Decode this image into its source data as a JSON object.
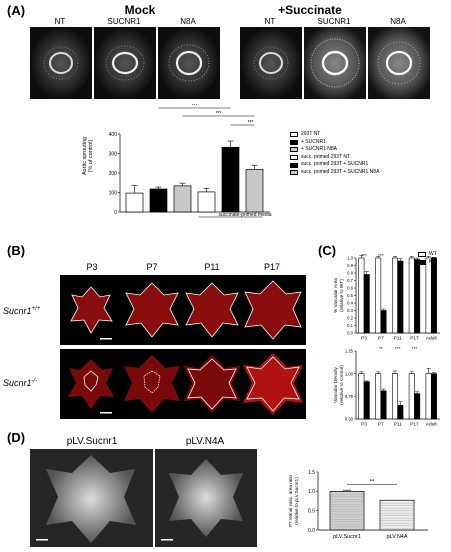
{
  "panelA": {
    "label": "(A)",
    "groups": [
      "Mock",
      "+Succinate"
    ],
    "image_labels": [
      "NT",
      "SUCNR1",
      "N8A",
      "NT",
      "SUCNR1",
      "N8A"
    ],
    "legend": [
      "293T NT",
      "+ SUCNR1",
      "+ SUCNR1 N8A",
      "succ. primed 293T NT",
      "succ. primed 293T + SUCNR1",
      "succ. primed 293T + SUCNR1 N8A"
    ],
    "media_label": "succinate-primed media",
    "colors": {
      "white": "#ffffff",
      "black": "#000000",
      "gray": "#c8c8c8"
    }
  },
  "panelB": {
    "label": "(B)",
    "columns": [
      "P3",
      "P7",
      "P11",
      "P17"
    ],
    "rows": [
      "Sucnr1+/+",
      "Sucnr1-/-"
    ],
    "row_main": [
      "Sucnr1",
      "Sucnr1"
    ],
    "row_sup": [
      "+/+",
      "-/-"
    ]
  },
  "panelC": {
    "label": "(C)",
    "legend": [
      "WT",
      "KO"
    ]
  },
  "panelD": {
    "label": "(D)",
    "image_labels": [
      "pLV.Sucnr1",
      "pLV.N4A"
    ]
  },
  "chart_data": [
    {
      "id": "aortic",
      "type": "bar",
      "ylabel": "Aortic sprouting\n(% of control)",
      "ylim": [
        0,
        400
      ],
      "yticks": [
        0,
        100,
        200,
        300,
        400
      ],
      "categories": [
        "293T NT",
        "+ SUCNR1",
        "+ SUCNR1 N8A",
        "succ. primed 293T NT",
        "succ. primed 293T + SUCNR1",
        "succ. primed 293T + SUCNR1 N8A"
      ],
      "values": [
        97,
        118,
        134,
        103,
        332,
        218
      ],
      "errors": [
        40,
        10,
        14,
        18,
        32,
        22
      ],
      "fills": [
        "#ffffff",
        "#000000",
        "#c8c8c8",
        "#ffffff",
        "#000000",
        "#c8c8c8"
      ],
      "significance": [
        {
          "from": 1,
          "to": 4,
          "label": "***"
        },
        {
          "from": 2,
          "to": 5,
          "label": "***"
        },
        {
          "from": 4,
          "to": 5,
          "label": "***"
        }
      ]
    },
    {
      "id": "vascular_area",
      "type": "bar",
      "ylabel": "% Vascular Area\n(relative to WT)",
      "ylim": [
        0,
        1.0
      ],
      "yticks": [
        0.0,
        0.1,
        0.2,
        0.3,
        0.4,
        0.5,
        0.6,
        0.7,
        0.8,
        0.9,
        1.0
      ],
      "ytick_labels": [
        "0.0",
        "0.1",
        "0.2",
        "0.3",
        "0.4",
        "0.5",
        "0.6",
        "0.7",
        "0.8",
        "0.9",
        "1.0"
      ],
      "categories": [
        "P3",
        "P7",
        "P11",
        "P17",
        "Adult"
      ],
      "series": [
        {
          "name": "WT",
          "values": [
            1.0,
            1.0,
            1.0,
            1.0,
            1.0
          ],
          "errors": [
            0.03,
            0.02,
            0.02,
            0.02,
            0.02
          ]
        },
        {
          "name": "KO",
          "values": [
            0.78,
            0.3,
            0.96,
            0.98,
            1.0
          ],
          "errors": [
            0.04,
            0.02,
            0.03,
            0.02,
            0.01
          ]
        }
      ],
      "significance": [
        "***",
        "***",
        "",
        "",
        ""
      ]
    },
    {
      "id": "vascular_density",
      "type": "bar",
      "ylabel": "Vascular Density\n(relative to control)",
      "ylim": [
        0.5,
        1.25
      ],
      "yticks": [
        0.5,
        0.75,
        1.0,
        1.25
      ],
      "ytick_labels": [
        "0.50",
        "0.75",
        "1.00",
        "1.25"
      ],
      "categories": [
        "P3",
        "P7",
        "P11",
        "P17",
        "Adult"
      ],
      "series": [
        {
          "name": "WT",
          "values": [
            1.0,
            1.0,
            1.0,
            1.0,
            1.0
          ],
          "errors": [
            0.02,
            0.02,
            0.03,
            0.02,
            0.06
          ]
        },
        {
          "name": "KO",
          "values": [
            0.91,
            0.81,
            0.65,
            0.78,
            1.0
          ],
          "errors": [
            0.01,
            0.02,
            0.04,
            0.02,
            0.01
          ]
        }
      ],
      "significance": [
        "",
        "**",
        "***",
        "***",
        ""
      ]
    },
    {
      "id": "p7_ratio",
      "type": "bar",
      "ylabel": "P7 retinal vasc. area ratio\n(relative to pLV.Sucnr1)",
      "ylim": [
        0,
        1.5
      ],
      "yticks": [
        0.0,
        0.5,
        1.0,
        1.5
      ],
      "ytick_labels": [
        "0.0",
        "0.5",
        "1.0",
        "1.5"
      ],
      "categories": [
        "pLV.Sucnr1",
        "pLV.N4A"
      ],
      "values": [
        1.0,
        0.77
      ],
      "errors": [
        0.03,
        0.0
      ],
      "significance": [
        {
          "from": 0,
          "to": 1,
          "label": "**"
        }
      ]
    }
  ]
}
